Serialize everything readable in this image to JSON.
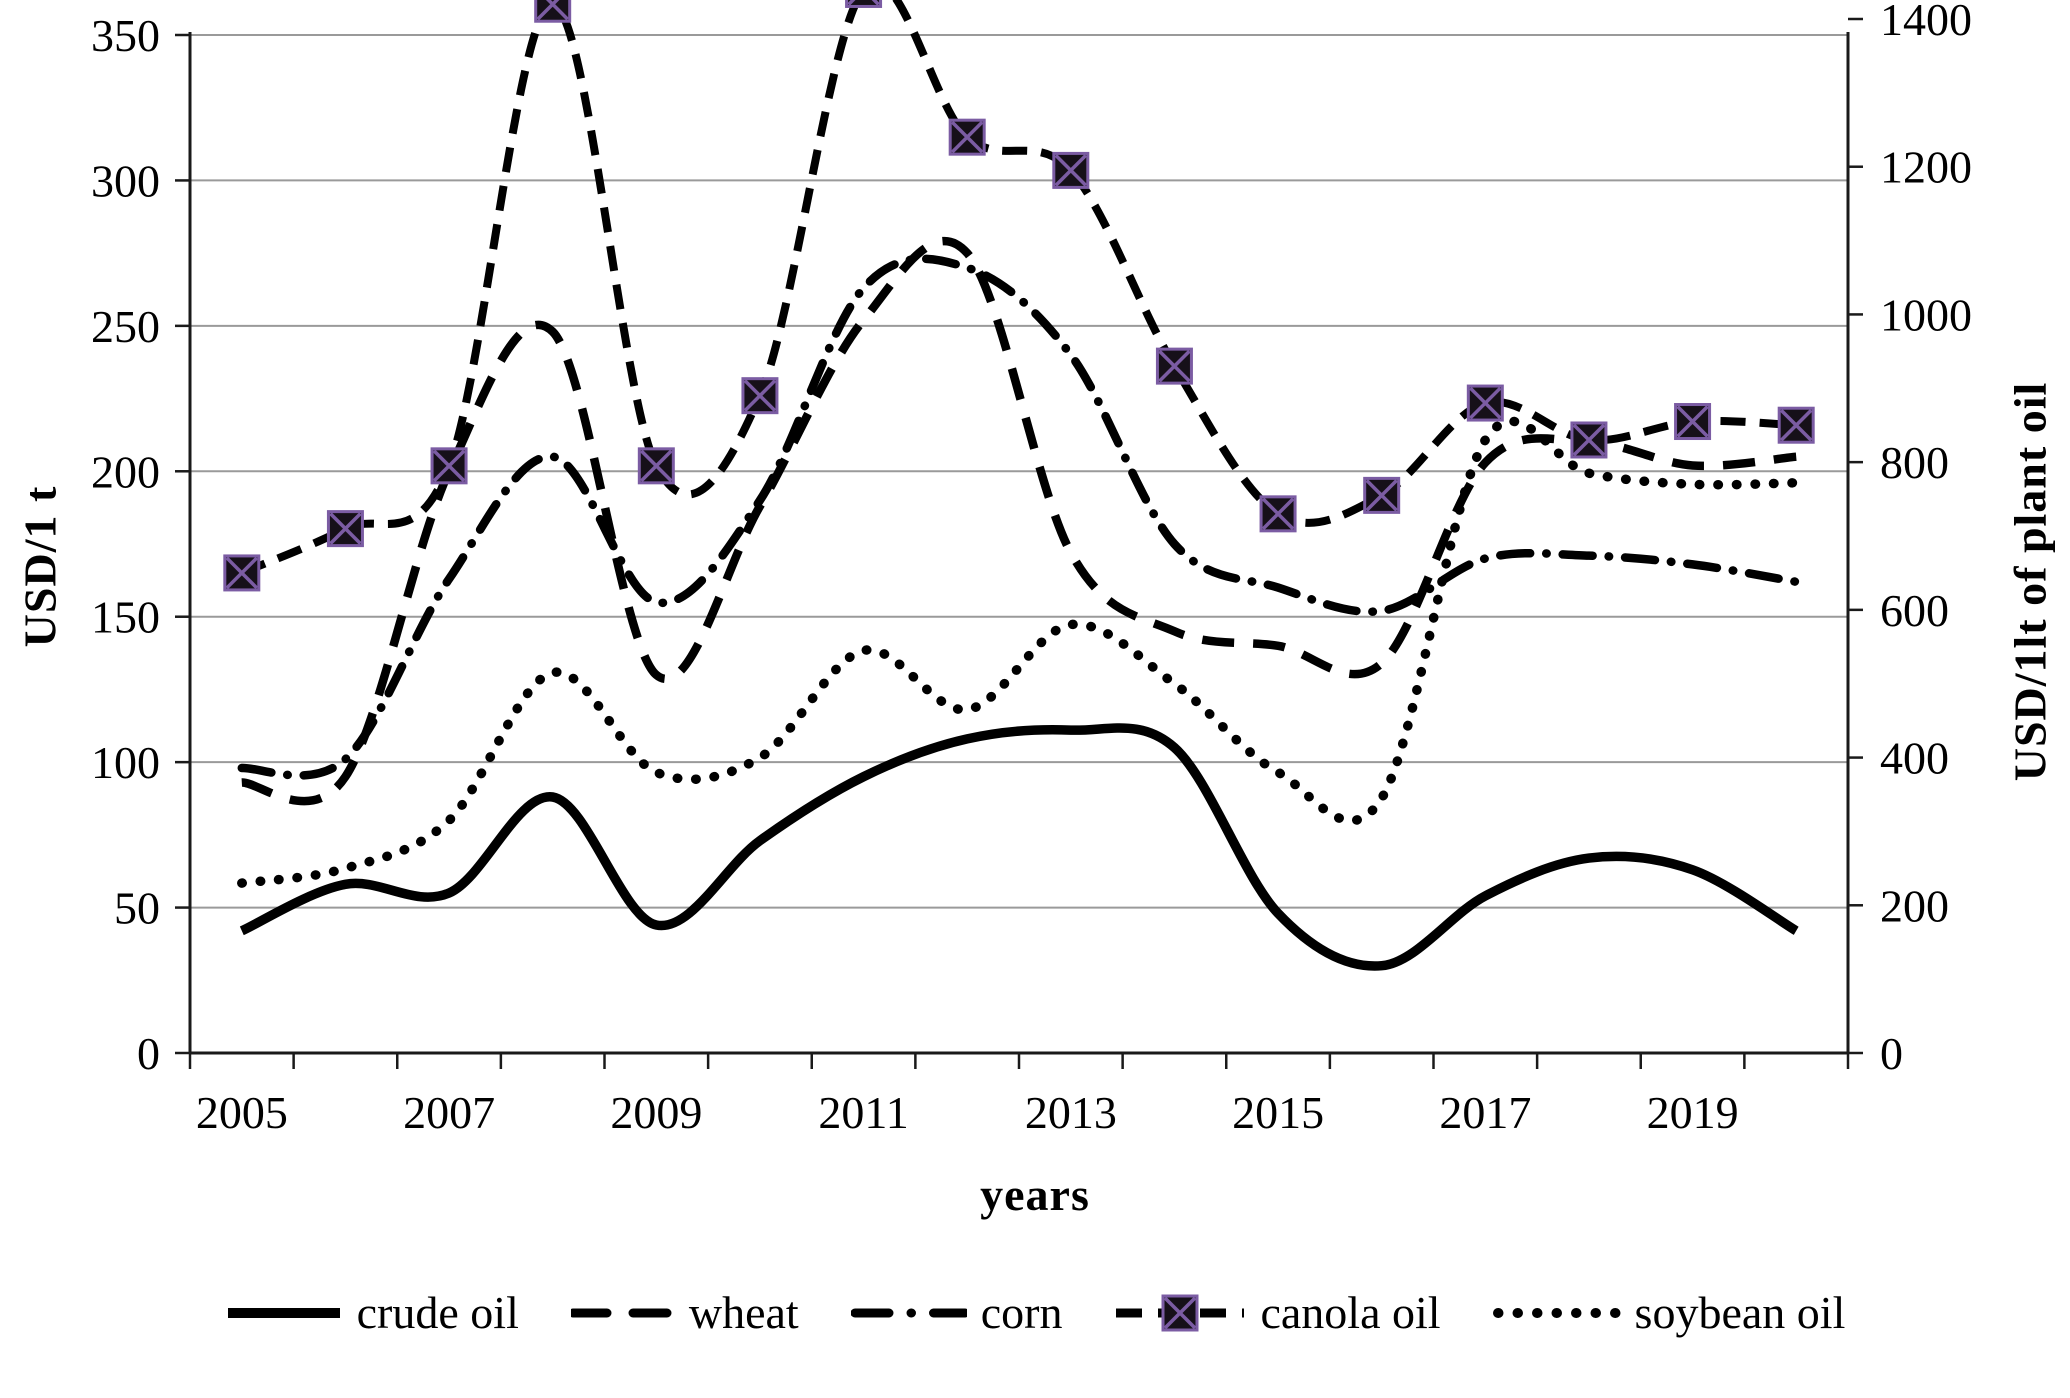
{
  "chart_data": {
    "type": "line",
    "title": "",
    "xlabel": "years",
    "x": [
      2005,
      2006,
      2007,
      2008,
      2009,
      2010,
      2011,
      2012,
      2013,
      2014,
      2015,
      2016,
      2017,
      2018,
      2019,
      2020
    ],
    "x_tick_labels": [
      "2005",
      "2007",
      "2009",
      "2011",
      "2013",
      "2015",
      "2017",
      "2019"
    ],
    "left_axis": {
      "label": "USD/1 t",
      "min": 0,
      "max": 350,
      "step": 50,
      "tick_labels": [
        "0",
        "50",
        "100",
        "150",
        "200",
        "250",
        "300",
        "350"
      ]
    },
    "right_axis": {
      "label": "USD/1lt of plant oil",
      "min": 0,
      "max": 1400,
      "step": 200,
      "tick_labels": [
        "0",
        "200",
        "400",
        "600",
        "800",
        "1000",
        "1200",
        "1400"
      ]
    },
    "grid": true,
    "legend_position": "bottom",
    "series": [
      {
        "name": "crude oil",
        "axis": "left",
        "line_style": "solid",
        "marker": "none",
        "color": "#000000",
        "values": [
          42,
          58,
          55,
          88,
          44,
          73,
          95,
          108,
          111,
          105,
          48,
          30,
          54,
          67,
          63,
          42
        ]
      },
      {
        "name": "wheat",
        "axis": "left",
        "line_style": "long-dash",
        "marker": "none",
        "color": "#000000",
        "values": [
          93,
          95,
          200,
          248,
          130,
          188,
          252,
          275,
          172,
          145,
          140,
          134,
          203,
          210,
          202,
          205
        ]
      },
      {
        "name": "corn",
        "axis": "left",
        "line_style": "dash-dot",
        "marker": "none",
        "color": "#000000",
        "values": [
          98,
          101,
          163,
          205,
          155,
          190,
          263,
          270,
          240,
          175,
          160,
          152,
          170,
          171,
          168,
          162
        ]
      },
      {
        "name": "canola oil",
        "axis": "right",
        "line_style": "dash",
        "marker": "square-x",
        "color": "#000000",
        "marker_color": "#7b5ca3",
        "values": [
          650,
          710,
          795,
          1420,
          795,
          890,
          1440,
          1240,
          1195,
          930,
          730,
          755,
          880,
          830,
          855,
          850
        ]
      },
      {
        "name": "soybean oil",
        "axis": "right",
        "line_style": "dotted",
        "marker": "none",
        "color": "#000000",
        "values": [
          230,
          250,
          315,
          515,
          380,
          400,
          545,
          465,
          580,
          500,
          380,
          345,
          830,
          785,
          770,
          772
        ]
      }
    ],
    "colors": {
      "gridline": "#9a9a9a",
      "axis": "#1a1a1a",
      "text": "#000000",
      "marker_x": "#7b5ca3"
    }
  }
}
